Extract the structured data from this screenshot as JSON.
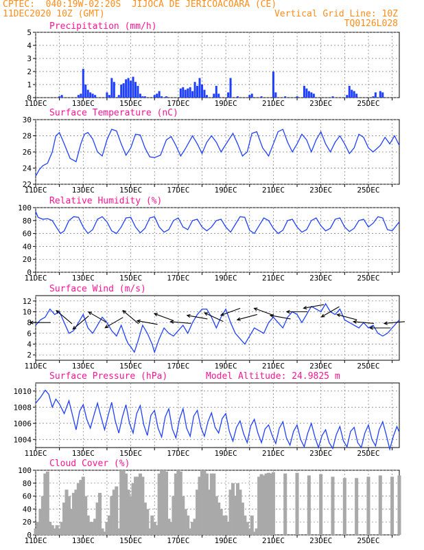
{
  "header": {
    "line1": "CPTEC:  040:19W-02:20S  JIJOCA DE JERICOACOARA (CE)",
    "line2_left": "11DEC2020 10Z (GMT)",
    "line2_right": "Vertical Grid Line: 10Z",
    "line3_right": "TQ0126L028"
  },
  "colors": {
    "header": "#ff8c1a",
    "title": "#ff1493",
    "line": "#1f3fff",
    "bar": "#1f3fff",
    "cloud": "#a9a9a9",
    "arrow": "#000000"
  },
  "chart_data": [
    {
      "id": "precipitation",
      "type": "bar",
      "title": "Precipitation (mm/h)",
      "x_unit": "days since 11DEC 10Z",
      "xlim": [
        0,
        15.3
      ],
      "ylim": [
        0,
        5
      ],
      "yticks": [
        0,
        1,
        2,
        3,
        4,
        5
      ],
      "xtick_labels": [
        "11DEC",
        "13DEC",
        "15DEC",
        "17DEC",
        "19DEC",
        "21DEC",
        "23DEC",
        "25DEC"
      ],
      "x": [
        1.0,
        1.1,
        1.8,
        1.9,
        2.0,
        2.1,
        2.2,
        2.3,
        2.4,
        2.5,
        3.0,
        3.1,
        3.2,
        3.3,
        3.5,
        3.6,
        3.7,
        3.8,
        3.9,
        4.0,
        4.1,
        4.2,
        4.3,
        4.4,
        4.5,
        4.6,
        5.0,
        5.1,
        5.2,
        5.3,
        5.5,
        6.1,
        6.2,
        6.3,
        6.4,
        6.5,
        6.6,
        6.7,
        6.8,
        6.9,
        7.0,
        7.1,
        7.2,
        7.5,
        7.6,
        7.7,
        8.1,
        8.2,
        8.5,
        9.0,
        9.1,
        9.5,
        10.0,
        10.1,
        10.5,
        11.0,
        11.3,
        11.4,
        11.5,
        11.6,
        11.7,
        12.5,
        13.1,
        13.2,
        13.3,
        13.4,
        13.5,
        14.2,
        14.3,
        14.5,
        14.6
      ],
      "values": [
        0.1,
        0.2,
        0.2,
        0.3,
        2.2,
        1.0,
        0.6,
        0.4,
        0.3,
        0.2,
        0.4,
        0.2,
        1.5,
        1.2,
        0.2,
        1.0,
        1.1,
        1.4,
        1.5,
        1.3,
        1.6,
        1.2,
        0.9,
        0.3,
        0.1,
        0.1,
        0.2,
        0.3,
        0.5,
        0.1,
        0.1,
        0.7,
        0.8,
        0.6,
        0.7,
        0.8,
        0.5,
        1.2,
        0.9,
        1.5,
        1.0,
        0.6,
        0.2,
        0.3,
        0.9,
        0.3,
        0.4,
        1.5,
        0.1,
        0.2,
        0.3,
        0.1,
        2.0,
        0.4,
        0.1,
        0.1,
        0.9,
        0.7,
        0.5,
        0.4,
        0.3,
        0.1,
        0.2,
        0.9,
        0.6,
        0.5,
        0.3,
        0.1,
        0.4,
        0.5,
        0.4
      ]
    },
    {
      "id": "temperature",
      "type": "line",
      "title": "Surface Temperature (nC)",
      "x_unit": "days since 11DEC 10Z",
      "xlim": [
        0,
        15.3
      ],
      "ylim": [
        22,
        30
      ],
      "yticks": [
        22,
        24,
        26,
        28,
        30
      ],
      "xtick_labels": [
        "11DEC",
        "13DEC",
        "15DEC",
        "17DEC",
        "19DEC",
        "21DEC",
        "23DEC",
        "25DEC"
      ],
      "x": [
        0,
        0.15,
        0.3,
        0.5,
        0.7,
        0.85,
        1.0,
        1.2,
        1.45,
        1.7,
        1.9,
        2.05,
        2.2,
        2.4,
        2.6,
        2.8,
        3.0,
        3.2,
        3.4,
        3.6,
        3.8,
        4.0,
        4.2,
        4.4,
        4.6,
        4.8,
        5.0,
        5.25,
        5.5,
        5.7,
        5.9,
        6.1,
        6.3,
        6.6,
        6.8,
        7.0,
        7.2,
        7.4,
        7.6,
        7.8,
        8.1,
        8.3,
        8.5,
        8.7,
        8.9,
        9.1,
        9.3,
        9.55,
        9.8,
        10.0,
        10.2,
        10.4,
        10.6,
        10.8,
        11.0,
        11.2,
        11.4,
        11.6,
        11.8,
        12.0,
        12.2,
        12.4,
        12.6,
        12.8,
        13.0,
        13.2,
        13.4,
        13.6,
        13.8,
        14.0,
        14.2,
        14.5,
        14.7,
        14.9,
        15.1,
        15.3
      ],
      "values": [
        23.0,
        23.8,
        24.3,
        24.6,
        26.0,
        28.0,
        28.4,
        27.0,
        25.2,
        24.8,
        27.0,
        28.2,
        28.4,
        27.6,
        26.0,
        25.5,
        27.5,
        28.8,
        28.6,
        27.0,
        25.6,
        26.5,
        28.2,
        28.1,
        26.5,
        25.4,
        25.3,
        25.6,
        27.5,
        27.9,
        26.8,
        25.5,
        26.4,
        28.0,
        27.0,
        25.8,
        27.2,
        28.0,
        27.2,
        26.0,
        27.4,
        28.3,
        27.0,
        25.5,
        26.0,
        28.3,
        28.5,
        26.5,
        25.5,
        27.0,
        28.5,
        28.8,
        27.2,
        26.0,
        27.0,
        28.2,
        27.5,
        26.0,
        27.5,
        28.5,
        27.0,
        26.0,
        27.2,
        28.0,
        27.0,
        25.8,
        26.5,
        28.2,
        27.8,
        26.5,
        26.0,
        26.8,
        27.8,
        27.0,
        28.0,
        26.8
      ]
    },
    {
      "id": "humidity",
      "type": "line",
      "title": "Relative Humidity (%)",
      "x_unit": "days since 11DEC 10Z",
      "xlim": [
        0,
        15.3
      ],
      "ylim": [
        0,
        100
      ],
      "yticks": [
        0,
        20,
        40,
        60,
        80,
        100
      ],
      "xtick_labels": [
        "11DEC",
        "13DEC",
        "15DEC",
        "17DEC",
        "19DEC",
        "21DEC",
        "23DEC",
        "25DEC"
      ],
      "x": [
        0,
        0.1,
        0.3,
        0.5,
        0.7,
        0.9,
        1.05,
        1.2,
        1.4,
        1.6,
        1.8,
        2.0,
        2.2,
        2.4,
        2.6,
        2.8,
        3.0,
        3.2,
        3.4,
        3.6,
        3.8,
        4.0,
        4.2,
        4.4,
        4.6,
        4.8,
        5.0,
        5.2,
        5.4,
        5.6,
        5.8,
        6.0,
        6.2,
        6.4,
        6.6,
        6.8,
        7.0,
        7.2,
        7.4,
        7.6,
        7.8,
        8.0,
        8.2,
        8.4,
        8.6,
        8.8,
        9.0,
        9.2,
        9.4,
        9.6,
        9.8,
        10.0,
        10.2,
        10.4,
        10.6,
        10.8,
        11.0,
        11.2,
        11.4,
        11.6,
        11.8,
        12.0,
        12.2,
        12.4,
        12.6,
        12.8,
        13.0,
        13.2,
        13.4,
        13.6,
        13.8,
        14.0,
        14.2,
        14.4,
        14.6,
        14.8,
        15.0,
        15.3
      ],
      "values": [
        94,
        85,
        82,
        83,
        80,
        68,
        60,
        64,
        80,
        86,
        85,
        70,
        60,
        66,
        82,
        86,
        78,
        64,
        60,
        70,
        84,
        85,
        70,
        61,
        68,
        84,
        86,
        70,
        62,
        66,
        80,
        84,
        70,
        66,
        80,
        82,
        70,
        64,
        70,
        80,
        82,
        70,
        62,
        74,
        86,
        85,
        65,
        60,
        72,
        84,
        80,
        68,
        60,
        65,
        80,
        82,
        70,
        62,
        66,
        80,
        84,
        72,
        64,
        68,
        82,
        84,
        70,
        63,
        68,
        80,
        82,
        70,
        76,
        86,
        84,
        66,
        64,
        78
      ]
    },
    {
      "id": "wind",
      "type": "line",
      "title": "Surface Wind (m/s)",
      "x_unit": "days since 11DEC 10Z",
      "xlim": [
        0,
        15.3
      ],
      "ylim": [
        1,
        13
      ],
      "yticks": [
        2,
        4,
        6,
        8,
        10,
        12
      ],
      "xtick_labels": [
        "11DEC",
        "13DEC",
        "15DEC",
        "17DEC",
        "19DEC",
        "21DEC",
        "23DEC",
        "25DEC"
      ],
      "x": [
        0,
        0.2,
        0.4,
        0.6,
        0.8,
        1.0,
        1.2,
        1.4,
        1.6,
        1.8,
        2.0,
        2.2,
        2.4,
        2.6,
        2.8,
        3.0,
        3.2,
        3.4,
        3.6,
        3.8,
        3.9,
        4.0,
        4.15,
        4.3,
        4.5,
        4.7,
        4.9,
        5.0,
        5.2,
        5.4,
        5.6,
        5.8,
        6.0,
        6.2,
        6.4,
        6.6,
        6.8,
        7.0,
        7.2,
        7.4,
        7.6,
        7.8,
        8.0,
        8.2,
        8.4,
        8.6,
        8.8,
        9.0,
        9.2,
        9.4,
        9.6,
        9.8,
        10.0,
        10.2,
        10.4,
        10.6,
        10.8,
        11.0,
        11.2,
        11.4,
        11.6,
        11.8,
        12.0,
        12.2,
        12.4,
        12.6,
        12.8,
        13.0,
        13.2,
        13.4,
        13.6,
        13.8,
        14.0,
        14.2,
        14.4,
        14.6,
        14.8,
        15.0,
        15.3
      ],
      "values": [
        7.5,
        8.5,
        9.0,
        10.5,
        9.5,
        10.0,
        8.0,
        6.0,
        6.5,
        8.0,
        9.5,
        7.0,
        6.0,
        7.5,
        9.0,
        8.0,
        6.5,
        5.5,
        7.5,
        5.0,
        4.0,
        3.5,
        2.5,
        4.5,
        7.5,
        6.0,
        4.0,
        2.5,
        5.0,
        7.0,
        6.0,
        5.5,
        6.5,
        7.5,
        6.0,
        8.0,
        9.5,
        10.5,
        10.5,
        9.0,
        7.0,
        9.0,
        10.5,
        8.0,
        6.0,
        5.0,
        4.0,
        5.5,
        7.0,
        6.5,
        6.0,
        8.0,
        9.0,
        8.0,
        7.0,
        9.0,
        10.0,
        9.5,
        8.0,
        9.5,
        11.0,
        10.5,
        10.0,
        11.5,
        10.0,
        9.5,
        10.5,
        8.5,
        8.0,
        7.5,
        7.0,
        8.0,
        7.0,
        7.5,
        6.0,
        5.5,
        6.0,
        7.0,
        8.5
      ]
    },
    {
      "id": "pressure",
      "type": "line",
      "title": "Surface Pressure (hPa)",
      "annotation": "Model Altitude: 24.9825 m",
      "x_unit": "days since 11DEC 10Z",
      "xlim": [
        0,
        15.3
      ],
      "ylim": [
        1003,
        1011
      ],
      "yticks": [
        1004,
        1006,
        1008,
        1010
      ],
      "xtick_labels": [
        "11DEC",
        "13DEC",
        "15DEC",
        "17DEC",
        "19DEC",
        "21DEC",
        "23DEC",
        "25DEC"
      ],
      "x": [
        0,
        0.2,
        0.4,
        0.55,
        0.7,
        0.85,
        1.0,
        1.2,
        1.4,
        1.55,
        1.7,
        1.85,
        2.0,
        2.15,
        2.3,
        2.45,
        2.6,
        2.75,
        2.9,
        3.05,
        3.2,
        3.35,
        3.5,
        3.65,
        3.8,
        3.95,
        4.1,
        4.25,
        4.4,
        4.55,
        4.7,
        4.85,
        5.0,
        5.15,
        5.3,
        5.45,
        5.6,
        5.75,
        5.9,
        6.05,
        6.2,
        6.35,
        6.5,
        6.65,
        6.8,
        6.95,
        7.1,
        7.25,
        7.4,
        7.55,
        7.7,
        7.85,
        8.0,
        8.15,
        8.3,
        8.45,
        8.6,
        8.75,
        8.9,
        9.05,
        9.2,
        9.35,
        9.5,
        9.65,
        9.8,
        9.95,
        10.1,
        10.25,
        10.4,
        10.55,
        10.7,
        10.85,
        11.0,
        11.15,
        11.3,
        11.45,
        11.6,
        11.75,
        11.9,
        12.05,
        12.2,
        12.35,
        12.5,
        12.65,
        12.8,
        12.95,
        13.1,
        13.25,
        13.4,
        13.55,
        13.7,
        13.85,
        14.0,
        14.15,
        14.3,
        14.45,
        14.6,
        14.75,
        14.9,
        15.05,
        15.2,
        15.3
      ],
      "values": [
        1008.5,
        1009.2,
        1010.1,
        1009.6,
        1008.0,
        1009.0,
        1008.4,
        1007.2,
        1008.8,
        1007.0,
        1005.2,
        1007.5,
        1008.3,
        1006.5,
        1005.4,
        1007.0,
        1008.5,
        1006.8,
        1005.2,
        1007.0,
        1008.6,
        1006.3,
        1004.8,
        1006.8,
        1008.3,
        1006.0,
        1004.8,
        1007.2,
        1008.2,
        1005.8,
        1004.5,
        1007.0,
        1007.6,
        1005.4,
        1004.3,
        1006.8,
        1007.8,
        1005.3,
        1004.2,
        1006.5,
        1007.8,
        1005.4,
        1004.4,
        1006.9,
        1007.6,
        1005.5,
        1004.4,
        1006.2,
        1007.3,
        1005.5,
        1004.8,
        1006.6,
        1007.2,
        1005.0,
        1003.8,
        1005.5,
        1006.3,
        1004.7,
        1003.6,
        1005.7,
        1006.5,
        1004.8,
        1003.6,
        1005.3,
        1005.8,
        1004.5,
        1003.5,
        1005.4,
        1006.2,
        1004.2,
        1003.3,
        1005.0,
        1005.8,
        1004.0,
        1003.1,
        1004.8,
        1006.0,
        1004.3,
        1003.0,
        1004.5,
        1005.2,
        1003.6,
        1002.9,
        1004.6,
        1005.6,
        1003.8,
        1003.1,
        1005.0,
        1005.5,
        1003.6,
        1003.0,
        1004.8,
        1005.8,
        1004.0,
        1003.2,
        1005.2,
        1006.2,
        1004.6,
        1002.8,
        1004.4,
        1005.6,
        1004.9
      ]
    },
    {
      "id": "cloud",
      "type": "bar",
      "title": "Cloud Cover (%)",
      "x_unit": "days since 11DEC 10Z",
      "xlim": [
        0,
        15.3
      ],
      "ylim": [
        0,
        100
      ],
      "yticks": [
        0,
        20,
        40,
        60,
        80,
        100
      ],
      "xtick_labels": [
        "11DEC",
        "13DEC",
        "15DEC",
        "17DEC",
        "19DEC",
        "21DEC",
        "23DEC",
        "25DEC"
      ],
      "x": [
        0,
        0.1,
        0.2,
        0.3,
        0.4,
        0.5,
        0.6,
        0.7,
        0.8,
        0.9,
        1.0,
        1.1,
        1.2,
        1.3,
        1.4,
        1.5,
        1.6,
        1.7,
        1.8,
        1.9,
        2.0,
        2.1,
        2.2,
        2.3,
        2.4,
        2.5,
        2.6,
        2.7,
        2.8,
        2.9,
        3.0,
        3.1,
        3.2,
        3.3,
        3.4,
        3.5,
        3.6,
        3.7,
        3.8,
        3.9,
        4.0,
        4.1,
        4.2,
        4.3,
        4.4,
        4.5,
        4.6,
        4.7,
        4.8,
        4.9,
        5.0,
        5.1,
        5.2,
        5.3,
        5.4,
        5.5,
        5.6,
        5.7,
        5.8,
        5.9,
        6.0,
        6.1,
        6.2,
        6.3,
        6.4,
        6.5,
        6.6,
        6.7,
        6.8,
        6.9,
        7.0,
        7.1,
        7.2,
        7.3,
        7.4,
        7.5,
        7.6,
        7.7,
        7.8,
        7.9,
        8.0,
        8.1,
        8.2,
        8.3,
        8.4,
        8.5,
        8.6,
        8.7,
        8.8,
        8.9,
        9.0,
        9.1,
        9.2,
        9.3,
        9.4,
        9.5,
        9.6,
        9.7,
        9.8,
        9.9,
        10.0,
        10.5,
        11.0,
        11.5,
        12.0,
        12.5,
        13.0,
        13.5,
        14.0,
        14.5,
        15.0,
        15.3
      ],
      "values": [
        10,
        20,
        40,
        60,
        95,
        98,
        20,
        15,
        10,
        15,
        10,
        20,
        50,
        70,
        60,
        40,
        65,
        70,
        80,
        85,
        90,
        60,
        30,
        20,
        20,
        25,
        50,
        65,
        10,
        5,
        20,
        30,
        60,
        70,
        75,
        10,
        100,
        100,
        95,
        70,
        60,
        80,
        90,
        90,
        95,
        90,
        50,
        40,
        10,
        30,
        20,
        15,
        95,
        100,
        100,
        98,
        25,
        20,
        60,
        95,
        100,
        98,
        60,
        40,
        30,
        10,
        20,
        25,
        70,
        90,
        100,
        100,
        95,
        70,
        95,
        95,
        60,
        50,
        40,
        30,
        30,
        20,
        70,
        80,
        60,
        80,
        70,
        50,
        30,
        20,
        10,
        30,
        5,
        10,
        90,
        94,
        92,
        95,
        96,
        95,
        97,
        95,
        96,
        92,
        94,
        90,
        88,
        88,
        90,
        92,
        90,
        92
      ]
    }
  ],
  "wind_vectors": {
    "speed_unit": "m/s",
    "x": [
      0.2,
      1.2,
      1.9,
      2.6,
      3.3,
      4.0,
      4.7,
      5.4,
      6.1,
      6.8,
      7.5,
      8.2,
      8.9,
      9.6,
      10.3,
      11.0,
      11.7,
      12.4,
      13.1,
      13.8,
      14.5,
      15.1
    ],
    "dir_deg_to": [
      180,
      140,
      220,
      150,
      210,
      140,
      170,
      160,
      175,
      170,
      155,
      200,
      195,
      160,
      170,
      180,
      190,
      210,
      165,
      175,
      180,
      185
    ],
    "speed": [
      8,
      9,
      8,
      9,
      8,
      9,
      8,
      9,
      8,
      9,
      9,
      10,
      9,
      10,
      9,
      10,
      11,
      10,
      9,
      8,
      7,
      8
    ]
  }
}
